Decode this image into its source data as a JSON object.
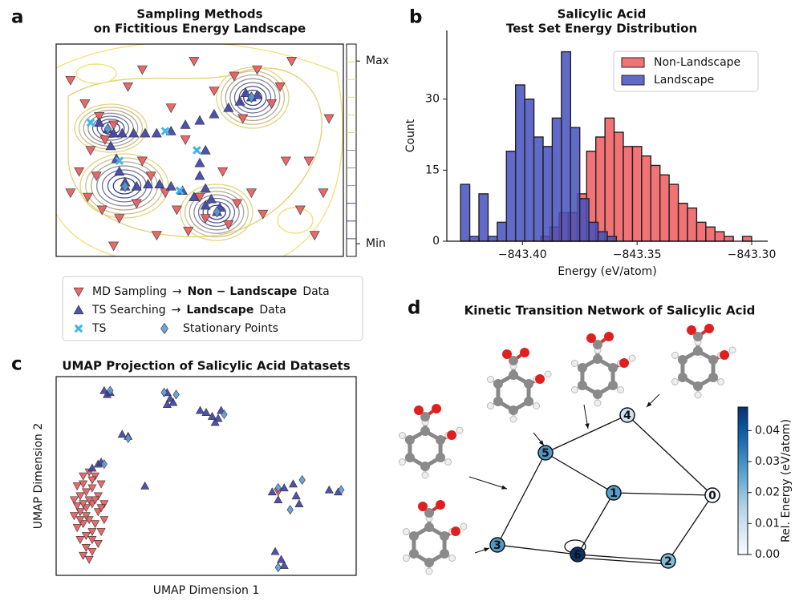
{
  "chart_data": [
    {
      "panel_label": "a",
      "type": "scatter",
      "title": [
        "Sampling Methods",
        "on Fictitious Energy Landscape"
      ],
      "xlim": [
        0,
        1
      ],
      "ylim": [
        0,
        1
      ],
      "colorbar": {
        "lim": [
          0,
          1
        ],
        "ticks": [
          {
            "value": 0.92,
            "label": "Max"
          },
          {
            "value": 0.06,
            "label": "Min"
          }
        ]
      },
      "series": [
        {
          "name": "MD Sampling",
          "legend_text": [
            "→",
            "Non − Landscape",
            "Data"
          ],
          "marker": "triangle-down",
          "color": "#e8585a",
          "x": [
            0.05,
            0.1,
            0.15,
            0.17,
            0.2,
            0.12,
            0.08,
            0.05,
            0.11,
            0.16,
            0.22,
            0.28,
            0.33,
            0.3,
            0.38,
            0.42,
            0.46,
            0.5,
            0.52,
            0.6,
            0.63,
            0.68,
            0.72,
            0.58,
            0.45,
            0.4,
            0.55,
            0.62,
            0.7,
            0.75,
            0.78,
            0.82,
            0.65,
            0.8,
            0.88,
            0.85,
            0.93,
            0.95,
            0.3,
            0.25,
            0.35,
            0.2,
            0.9,
            0.14,
            0.48
          ],
          "y": [
            0.83,
            0.72,
            0.66,
            0.55,
            0.62,
            0.5,
            0.4,
            0.3,
            0.28,
            0.22,
            0.18,
            0.25,
            0.38,
            0.45,
            0.3,
            0.22,
            0.12,
            0.28,
            0.18,
            0.15,
            0.25,
            0.3,
            0.2,
            0.4,
            0.55,
            0.7,
            0.78,
            0.85,
            0.88,
            0.72,
            0.8,
            0.92,
            0.65,
            0.45,
            0.45,
            0.22,
            0.3,
            0.65,
            0.88,
            0.8,
            0.1,
            0.05,
            0.1,
            0.38,
            0.92
          ]
        },
        {
          "name": "TS Searching",
          "legend_text": [
            "→",
            "Landscape",
            "Data"
          ],
          "marker": "triangle-up",
          "color": "#3a3fa6",
          "x": [
            0.18,
            0.2,
            0.23,
            0.27,
            0.31,
            0.35,
            0.4,
            0.45,
            0.5,
            0.55,
            0.6,
            0.64,
            0.68,
            0.66,
            0.7,
            0.19,
            0.21,
            0.22,
            0.24,
            0.24,
            0.28,
            0.32,
            0.36,
            0.4,
            0.44,
            0.48,
            0.52,
            0.56,
            0.52,
            0.5,
            0.5,
            0.52,
            0.54,
            0.57,
            0.15
          ],
          "y": [
            0.6,
            0.58,
            0.58,
            0.58,
            0.58,
            0.58,
            0.59,
            0.62,
            0.64,
            0.67,
            0.7,
            0.73,
            0.75,
            0.77,
            0.76,
            0.52,
            0.46,
            0.4,
            0.35,
            0.33,
            0.33,
            0.34,
            0.34,
            0.33,
            0.31,
            0.28,
            0.24,
            0.21,
            0.5,
            0.44,
            0.38,
            0.32,
            0.27,
            0.23,
            0.63
          ]
        },
        {
          "name": "TS",
          "marker": "x",
          "color": "#41b6e6",
          "x": [
            0.38,
            0.49,
            0.22,
            0.43,
            0.12
          ],
          "y": [
            0.59,
            0.5,
            0.45,
            0.31,
            0.63
          ]
        },
        {
          "name": "Stationary Points",
          "marker": "diamond",
          "color": "#5b9bd5",
          "x": [
            0.18,
            0.24,
            0.56,
            0.68
          ],
          "y": [
            0.6,
            0.33,
            0.21,
            0.75
          ]
        }
      ]
    },
    {
      "panel_label": "b",
      "type": "histogram",
      "title": [
        "Salicylic Acid",
        "Test Set Energy Distribution"
      ],
      "xlabel": "Energy (eV/atom)",
      "ylabel": "Count",
      "xlim": [
        -843.433,
        -843.293
      ],
      "ylim": [
        0,
        44.5
      ],
      "xticks": [
        {
          "value": -843.4,
          "label": "−843.40"
        },
        {
          "value": -843.35,
          "label": "−843.35"
        },
        {
          "value": -843.3,
          "label": "−843.30"
        }
      ],
      "yticks": [
        0,
        15,
        30
      ],
      "legend": "upper right",
      "series": [
        {
          "name": "Non-Landscape",
          "color": "#f05a5e",
          "bins": [
            -843.392,
            -843.388,
            -843.384,
            -843.38,
            -843.376,
            -843.372,
            -843.368,
            -843.364,
            -843.36,
            -843.356,
            -843.352,
            -843.348,
            -843.344,
            -843.34,
            -843.336,
            -843.332,
            -843.328,
            -843.324,
            -843.32,
            -843.316,
            -843.312,
            -843.308,
            -843.304,
            -843.3
          ],
          "counts": [
            1,
            3,
            6,
            6,
            10,
            19,
            22,
            26,
            23,
            20,
            20,
            18,
            16,
            14,
            12,
            8,
            7,
            4,
            3,
            2,
            1,
            0,
            1
          ]
        },
        {
          "name": "Landscape",
          "color": "#4650c0",
          "bins": [
            -843.427,
            -843.423,
            -843.419,
            -843.415,
            -843.411,
            -843.407,
            -843.403,
            -843.399,
            -843.395,
            -843.391,
            -843.387,
            -843.383,
            -843.379,
            -843.375,
            -843.371,
            -843.367,
            -843.363,
            -843.359
          ],
          "counts": [
            12,
            1,
            10,
            1,
            4,
            19,
            33,
            30,
            22,
            20,
            26,
            40,
            24,
            9,
            4,
            2,
            1
          ]
        }
      ]
    },
    {
      "panel_label": "c",
      "type": "scatter",
      "title": "UMAP Projection of Salicylic Acid Datasets",
      "xlabel": "UMAP Dimension 1",
      "ylabel": "UMAP Dimension 2",
      "xlim": [
        0,
        1
      ],
      "ylim": [
        0,
        1
      ],
      "series": [
        {
          "marker": "triangle-down",
          "color": "#e8585a",
          "x": [
            0.07,
            0.09,
            0.11,
            0.13,
            0.15,
            0.06,
            0.08,
            0.1,
            0.12,
            0.14,
            0.16,
            0.06,
            0.08,
            0.1,
            0.12,
            0.14,
            0.16,
            0.07,
            0.09,
            0.11,
            0.13,
            0.15,
            0.08,
            0.1,
            0.12,
            0.14,
            0.1,
            0.12,
            0.09,
            0.11,
            0.07,
            0.09,
            0.11,
            0.13,
            0.15,
            0.09,
            0.12,
            0.1,
            0.12,
            0.08,
            0.74
          ],
          "y": [
            0.45,
            0.5,
            0.52,
            0.5,
            0.46,
            0.38,
            0.4,
            0.42,
            0.44,
            0.4,
            0.36,
            0.3,
            0.32,
            0.34,
            0.36,
            0.32,
            0.28,
            0.24,
            0.26,
            0.28,
            0.26,
            0.22,
            0.18,
            0.2,
            0.18,
            0.16,
            0.14,
            0.12,
            0.1,
            0.08,
            0.35,
            0.36,
            0.38,
            0.38,
            0.34,
            0.46,
            0.48,
            0.3,
            0.22,
            0.28,
            0.42
          ]
        },
        {
          "marker": "triangle-up",
          "color": "#3a3fa6",
          "x": [
            0.16,
            0.17,
            0.18,
            0.37,
            0.38,
            0.39,
            0.37,
            0.48,
            0.5,
            0.52,
            0.54,
            0.55,
            0.53,
            0.22,
            0.24,
            0.12,
            0.14,
            0.15,
            0.296,
            0.72,
            0.74,
            0.76,
            0.8,
            0.81,
            0.79,
            0.91,
            0.94,
            0.73,
            0.75,
            0.76
          ],
          "y": [
            0.93,
            0.91,
            0.92,
            0.92,
            0.89,
            0.87,
            0.86,
            0.83,
            0.82,
            0.8,
            0.79,
            0.83,
            0.77,
            0.71,
            0.7,
            0.54,
            0.56,
            0.57,
            0.45,
            0.42,
            0.38,
            0.44,
            0.4,
            0.36,
            0.46,
            0.43,
            0.42,
            0.12,
            0.08,
            0.05
          ]
        },
        {
          "marker": "diamond",
          "color": "#5b9bd5",
          "x": [
            0.18,
            0.4,
            0.56,
            0.24,
            0.16,
            0.78,
            0.82,
            0.95,
            0.74,
            0.36,
            0.74
          ],
          "y": [
            0.93,
            0.91,
            0.81,
            0.69,
            0.56,
            0.33,
            0.48,
            0.43,
            0.04,
            0.92,
            0.44
          ]
        }
      ]
    },
    {
      "panel_label": "d",
      "type": "network",
      "title": "Kinetic Transition Network of Salicylic Acid",
      "nodes": [
        {
          "label": "0",
          "energy": 0.0
        },
        {
          "label": "1",
          "energy": 0.027
        },
        {
          "label": "2",
          "energy": 0.021
        },
        {
          "label": "3",
          "energy": 0.028
        },
        {
          "label": "4",
          "energy": 0.01
        },
        {
          "label": "5",
          "energy": 0.028
        },
        {
          "label": "6",
          "energy": 0.047
        }
      ],
      "edges": [
        [
          5,
          4
        ],
        [
          4,
          0
        ],
        [
          5,
          1
        ],
        [
          1,
          0
        ],
        [
          5,
          3
        ],
        [
          3,
          6
        ],
        [
          6,
          2
        ],
        [
          6,
          2
        ],
        [
          2,
          0
        ],
        [
          1,
          6
        ],
        [
          6,
          6
        ]
      ],
      "colorbar": {
        "label": "Rel. Energy (eV/atom)",
        "lim": [
          0,
          0.0476
        ],
        "ticks": [
          {
            "value": 0,
            "label": "0.00"
          },
          {
            "value": 0.01,
            "label": "0.01"
          },
          {
            "value": 0.02,
            "label": "0.02"
          },
          {
            "value": 0.03,
            "label": "0.03"
          },
          {
            "value": 0.04,
            "label": "0.04"
          }
        ]
      }
    }
  ]
}
